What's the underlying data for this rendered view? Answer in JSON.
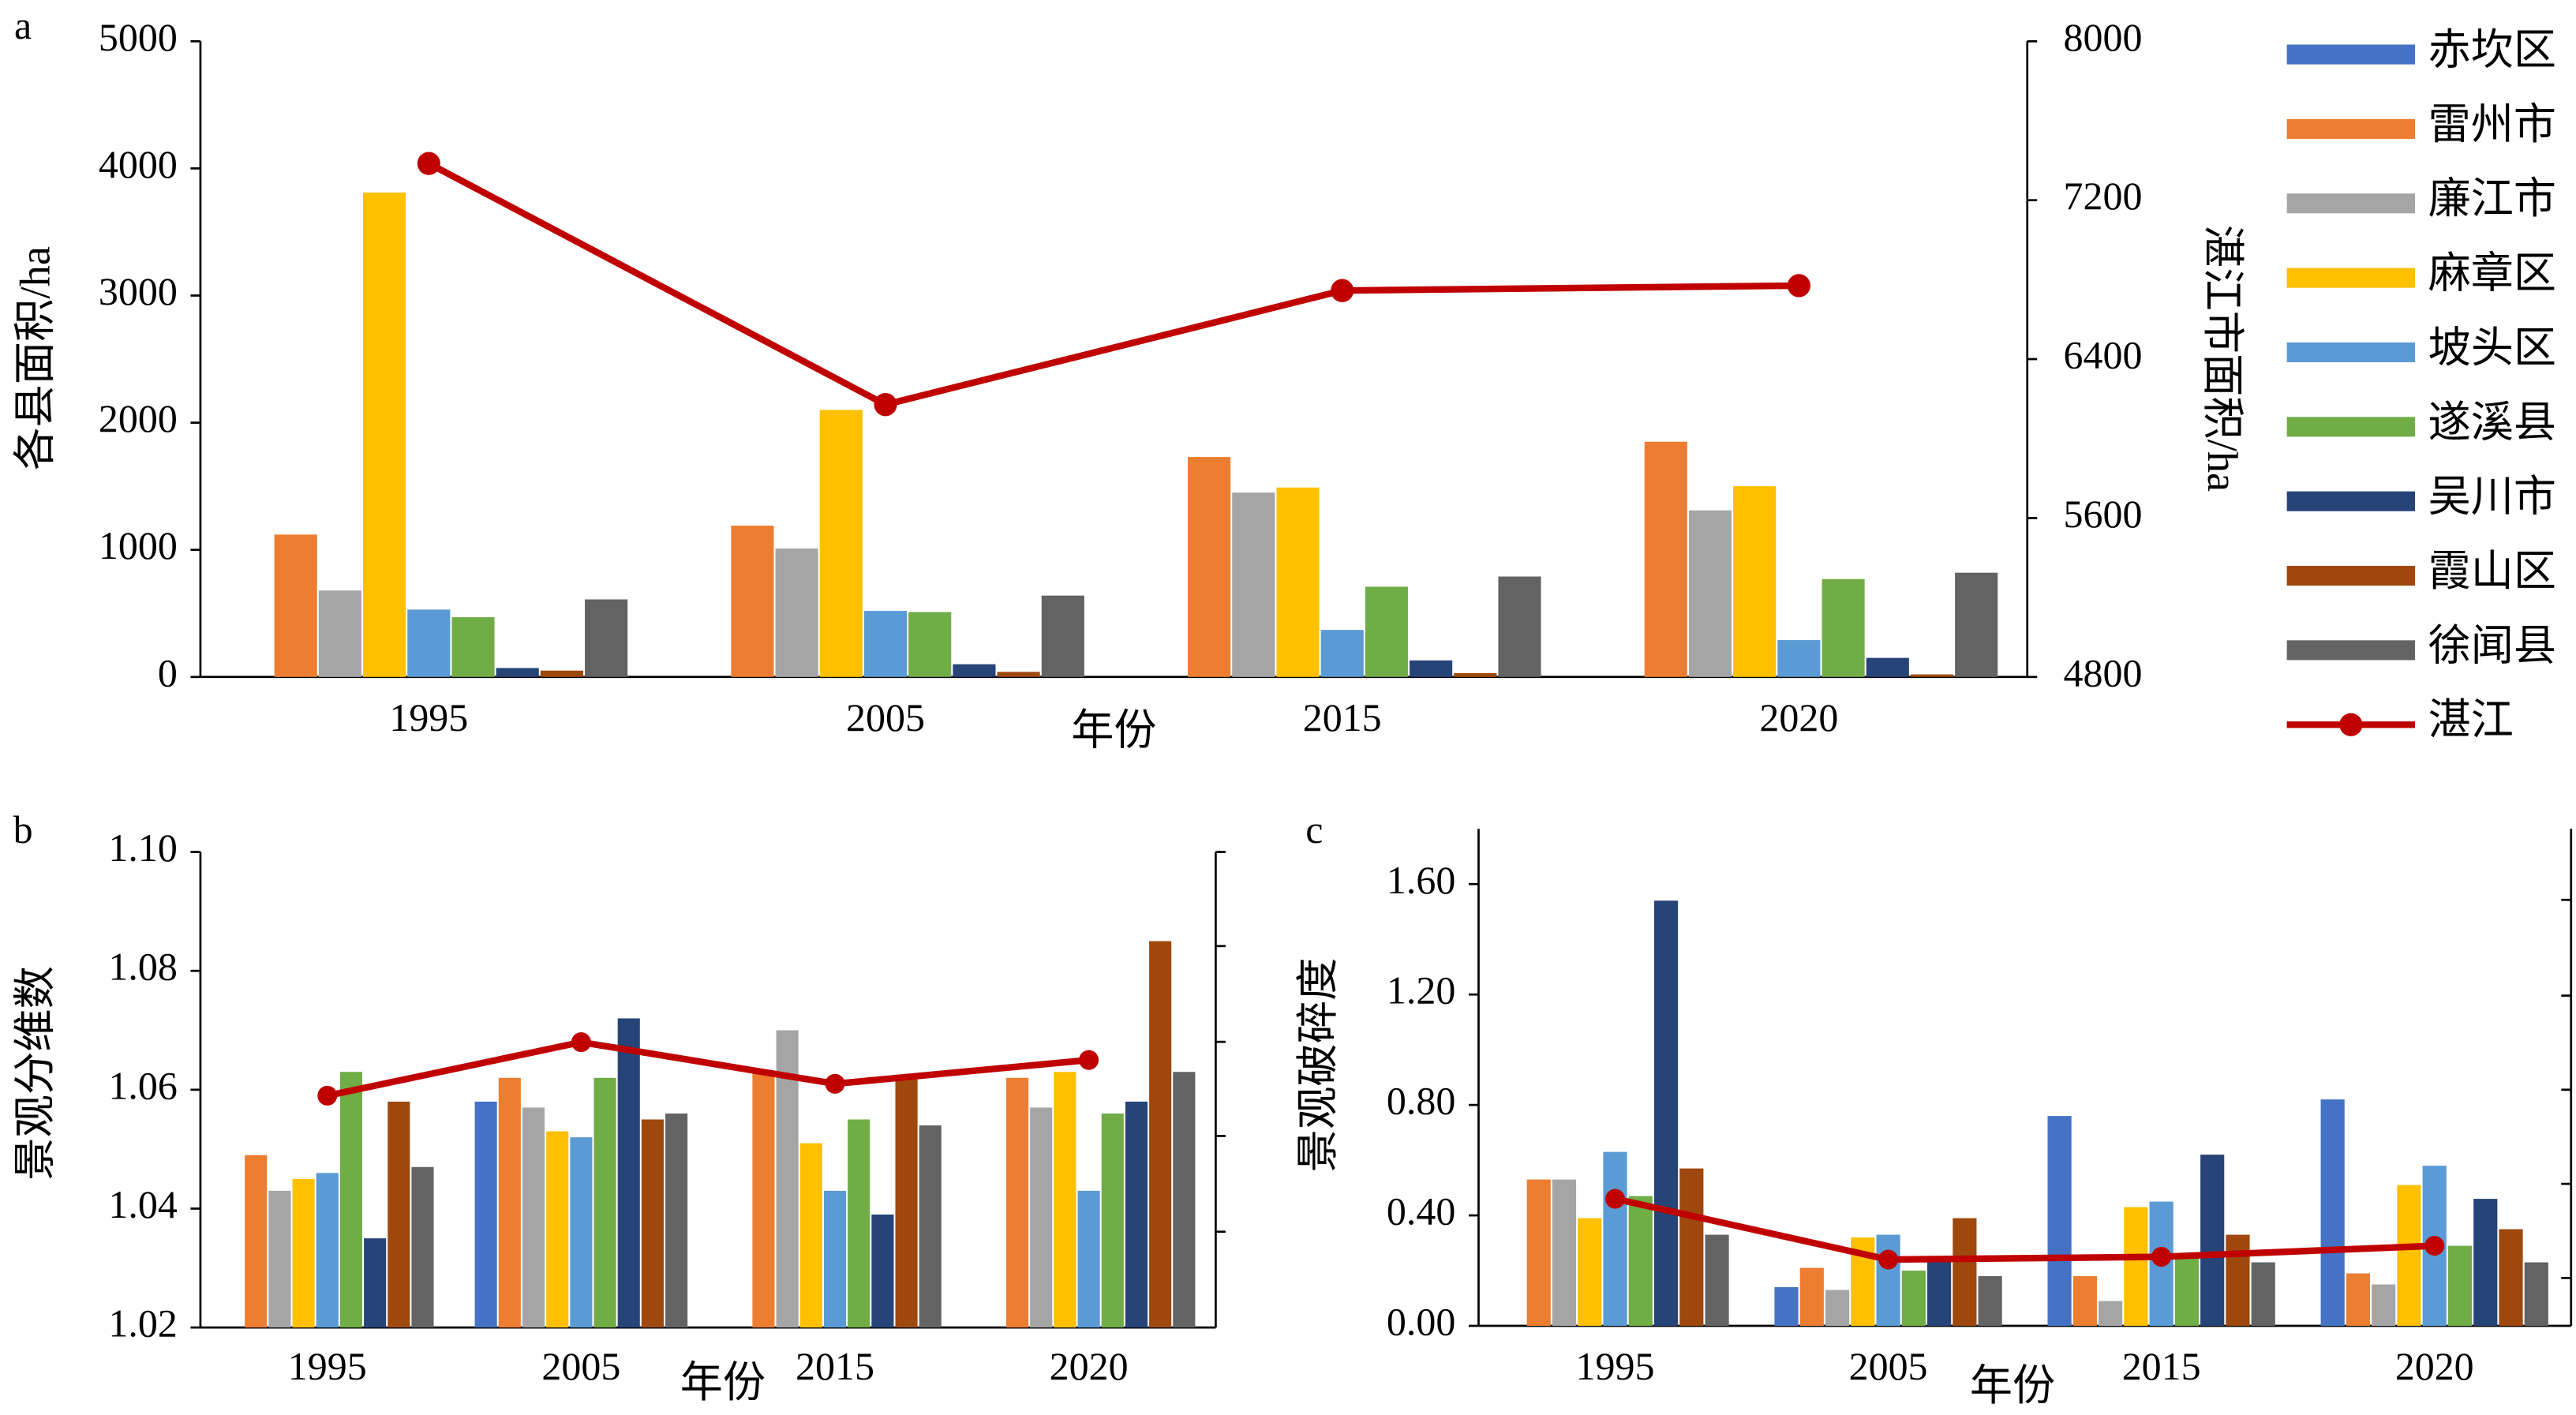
{
  "chart_data": [
    {
      "type": "bar",
      "panel": "a",
      "xlabel": "年份",
      "ylabel": "各县面积/ha",
      "y2label": "湛江市面积/ha",
      "legend": "right",
      "categories": [
        "1995",
        "2005",
        "2015",
        "2020"
      ],
      "ylim": [
        0,
        5000
      ],
      "yticks": [
        0,
        1000,
        2000,
        3000,
        4000,
        5000
      ],
      "y2lim": [
        4800,
        8000
      ],
      "y2ticks": [
        4800,
        5600,
        6400,
        7200,
        8000
      ],
      "series": [
        {
          "name": "赤坎区",
          "color": "#4472c4",
          "values": [
            null,
            null,
            null,
            null
          ]
        },
        {
          "name": "雷州市",
          "color": "#ed7d31",
          "values": [
            1120,
            1190,
            1730,
            1850
          ]
        },
        {
          "name": "廉江市",
          "color": "#a5a5a5",
          "values": [
            680,
            1010,
            1450,
            1310
          ]
        },
        {
          "name": "麻章区",
          "color": "#ffc000",
          "values": [
            3810,
            2100,
            1490,
            1500
          ]
        },
        {
          "name": "坡头区",
          "color": "#5b9bd5",
          "values": [
            530,
            520,
            370,
            290
          ]
        },
        {
          "name": "遂溪县",
          "color": "#70ad47",
          "values": [
            470,
            510,
            710,
            770
          ]
        },
        {
          "name": "吴川市",
          "color": "#264478",
          "values": [
            70,
            100,
            130,
            150
          ]
        },
        {
          "name": "霞山区",
          "color": "#9e480e",
          "values": [
            50,
            40,
            30,
            20
          ]
        },
        {
          "name": "徐闻县",
          "color": "#636363",
          "values": [
            610,
            640,
            790,
            820
          ]
        },
        {
          "name": "湛江",
          "type": "line",
          "axis": "y2",
          "color": "#c00000",
          "values": [
            7385,
            6171,
            6745,
            6770
          ]
        }
      ]
    },
    {
      "type": "bar",
      "panel": "b",
      "xlabel": "年份",
      "ylabel": "景观分维数",
      "categories": [
        "1995",
        "2005",
        "2015",
        "2020"
      ],
      "ylim": [
        1.02,
        1.1
      ],
      "yticks": [
        1.02,
        1.04,
        1.06,
        1.08,
        {
          "value": 1.1,
          "label": "1.10"
        }
      ],
      "series": [
        {
          "color": "#4472c4",
          "values": [
            null,
            1.058,
            null,
            null
          ]
        },
        {
          "color": "#ed7d31",
          "values": [
            1.049,
            1.062,
            1.063,
            1.062
          ]
        },
        {
          "color": "#a5a5a5",
          "values": [
            1.043,
            1.057,
            1.07,
            1.057
          ]
        },
        {
          "color": "#ffc000",
          "values": [
            1.045,
            1.053,
            1.051,
            1.063
          ]
        },
        {
          "color": "#5b9bd5",
          "values": [
            1.046,
            1.052,
            1.043,
            1.043
          ]
        },
        {
          "color": "#70ad47",
          "values": [
            1.063,
            1.062,
            1.055,
            1.056
          ]
        },
        {
          "color": "#264478",
          "values": [
            1.035,
            1.072,
            1.039,
            1.058
          ]
        },
        {
          "color": "#9e480e",
          "values": [
            1.058,
            1.055,
            1.062,
            1.085
          ]
        },
        {
          "color": "#636363",
          "values": [
            1.047,
            1.056,
            1.054,
            1.063
          ]
        },
        {
          "type": "line",
          "color": "#c00000",
          "values": [
            1.059,
            1.068,
            1.061,
            1.065
          ]
        }
      ]
    },
    {
      "type": "bar",
      "panel": "c",
      "xlabel": "年份",
      "ylabel": "景观破碎度",
      "categories": [
        "1995",
        "2005",
        "2015",
        "2020"
      ],
      "ylim": [
        0,
        1.8
      ],
      "yticks": [
        {
          "value": 0,
          "label": "0.00"
        },
        {
          "value": 0.4,
          "label": "0.40"
        },
        {
          "value": 0.8,
          "label": "0.80"
        },
        {
          "value": 1.2,
          "label": "1.20"
        },
        {
          "value": 1.6,
          "label": "1.60"
        }
      ],
      "series": [
        {
          "color": "#4472c4",
          "values": [
            null,
            0.14,
            0.76,
            0.82
          ]
        },
        {
          "color": "#ed7d31",
          "values": [
            0.53,
            0.21,
            0.18,
            0.19
          ]
        },
        {
          "color": "#a5a5a5",
          "values": [
            0.53,
            0.13,
            0.09,
            0.15
          ]
        },
        {
          "color": "#ffc000",
          "values": [
            0.39,
            0.32,
            0.43,
            0.51
          ]
        },
        {
          "color": "#5b9bd5",
          "values": [
            0.63,
            0.33,
            0.45,
            0.58
          ]
        },
        {
          "color": "#70ad47",
          "values": [
            0.47,
            0.2,
            0.25,
            0.29
          ]
        },
        {
          "color": "#264478",
          "values": [
            1.54,
            0.25,
            0.62,
            0.46
          ]
        },
        {
          "color": "#9e480e",
          "values": [
            0.57,
            0.39,
            0.33,
            0.35
          ]
        },
        {
          "color": "#636363",
          "values": [
            0.33,
            0.18,
            0.23,
            0.23
          ]
        },
        {
          "type": "line",
          "color": "#c00000",
          "values": [
            0.46,
            0.24,
            0.25,
            0.29
          ]
        }
      ]
    }
  ]
}
